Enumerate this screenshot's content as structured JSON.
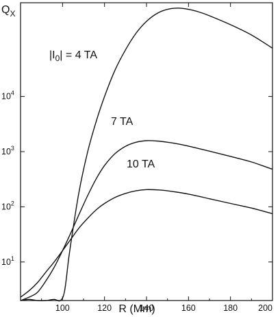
{
  "chart_data": {
    "type": "line",
    "title": "",
    "ylabel_main": "Q",
    "ylabel_sub": "X",
    "xlabel": "R  (Mm)",
    "xlim": [
      80,
      200
    ],
    "ylim": [
      2,
      500000
    ],
    "ylog": true,
    "grid": false,
    "x_ticks": [
      100,
      120,
      140,
      160,
      180,
      200
    ],
    "x_tick_labels": [
      "100",
      "120",
      "140",
      "160",
      "180",
      "200"
    ],
    "y_ticks": [
      10,
      100,
      1000,
      10000
    ],
    "y_tick_labels": [
      {
        "base": "10",
        "exp": "1"
      },
      {
        "base": "10",
        "exp": "2"
      },
      {
        "base": "10",
        "exp": "3"
      },
      {
        "base": "10",
        "exp": "4"
      }
    ],
    "series": [
      {
        "label_left": "|I",
        "label_sub": "0",
        "label_right": "| = 4 TA",
        "x": [
          80,
          84,
          88,
          92,
          96,
          99,
          101,
          103,
          105,
          108,
          112,
          116,
          120,
          125,
          130,
          135,
          140,
          145,
          150,
          155,
          160,
          165,
          170,
          180,
          190,
          200
        ],
        "y": [
          2.0,
          2.1,
          2.0,
          2.0,
          2.1,
          2.0,
          3.0,
          12,
          40,
          200,
          1000,
          3500,
          10000,
          30000,
          70000,
          140000,
          230000,
          320000,
          380000,
          400000,
          380000,
          340000,
          290000,
          200000,
          130000,
          75000
        ]
      },
      {
        "label": "7 TA",
        "x": [
          80,
          84,
          88,
          92,
          96,
          100,
          104,
          108,
          112,
          116,
          120,
          125,
          130,
          135,
          140,
          145,
          150,
          155,
          160,
          170,
          180,
          190,
          200
        ],
        "y": [
          2.0,
          2.3,
          2.8,
          4.5,
          8.0,
          16,
          34,
          75,
          160,
          320,
          560,
          920,
          1250,
          1480,
          1580,
          1560,
          1480,
          1380,
          1260,
          1020,
          820,
          650,
          480
        ]
      },
      {
        "label": "10 TA",
        "x": [
          80,
          84,
          88,
          92,
          96,
          100,
          104,
          108,
          112,
          116,
          120,
          125,
          130,
          135,
          140,
          145,
          150,
          160,
          170,
          180,
          190,
          200
        ],
        "y": [
          2.3,
          3.0,
          4.2,
          6.5,
          10,
          16,
          26,
          42,
          62,
          88,
          115,
          148,
          175,
          195,
          205,
          203,
          195,
          170,
          140,
          115,
          95,
          75
        ]
      }
    ]
  }
}
